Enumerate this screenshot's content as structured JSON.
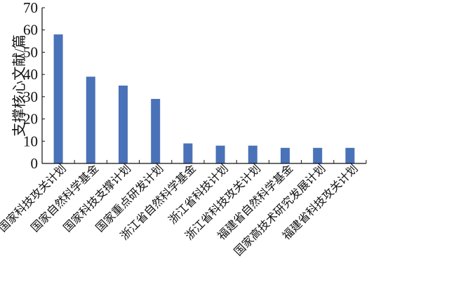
{
  "chart_data": {
    "type": "bar",
    "title": "",
    "xlabel": "",
    "ylabel": "支撑核心文献/篇",
    "ylim": [
      0,
      70
    ],
    "yticks": [
      0,
      10,
      20,
      30,
      40,
      50,
      60,
      70
    ],
    "grid": false,
    "bar_color": "#4a72b8",
    "categories": [
      "国家科技攻关计划",
      "国家自然科学基金",
      "国家科技支撑计划",
      "国家重点研发计划",
      "浙江省自然科学基金",
      "浙江省科技计划",
      "浙江省科技攻关计划",
      "福建省自然科学基金",
      "国家高技术研究发展计划",
      "福建省科技攻关计划"
    ],
    "values": [
      58,
      39,
      35,
      29,
      9,
      8,
      8,
      7,
      7,
      7
    ]
  }
}
